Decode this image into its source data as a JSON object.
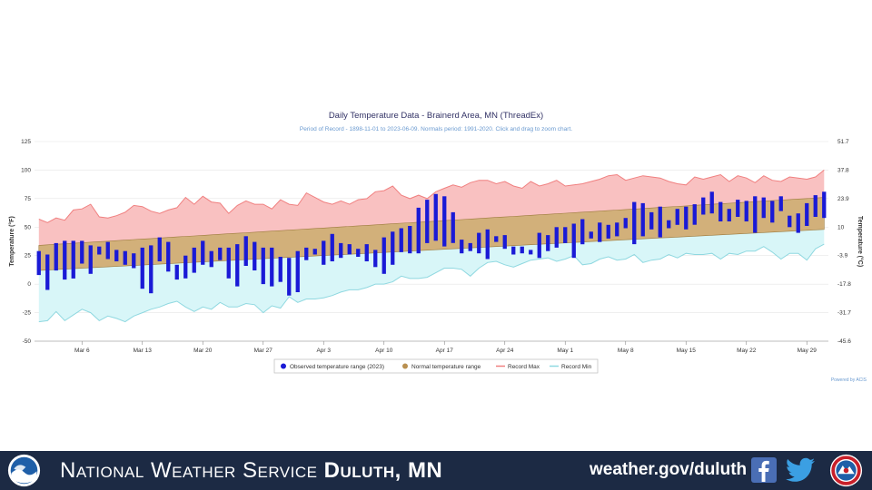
{
  "footer": {
    "title_prefix": "National Weather Service",
    "title_bold": "Duluth, MN",
    "url": "weather.gov/duluth",
    "icons": [
      "noaa-logo-icon",
      "facebook-icon",
      "twitter-icon",
      "nws-logo-icon"
    ]
  },
  "chart_data": {
    "type": "area",
    "title": "Daily Temperature Data - Brainerd Area, MN (ThreadEx)",
    "subtitle": "Period of Record - 1898-11-01 to 2023-06-09. Normals period: 1991-2020. Click and drag to zoom chart.",
    "ylabel": "Temperature (°F)",
    "ylabel_right": "Temperature (°C)",
    "ylim": [
      -50,
      125
    ],
    "yticks": [
      125,
      100,
      75,
      50,
      25,
      0,
      -25,
      -50
    ],
    "yticks_right": [
      "51.7",
      "37.8",
      "23.9",
      "10",
      "-3.9",
      "-17.8",
      "-31.7",
      "-45.6"
    ],
    "x_start": "Mar 1",
    "x_end": "Jun 1",
    "xtick_labels": [
      "Mar 6",
      "Mar 13",
      "Mar 20",
      "Mar 27",
      "Apr 3",
      "Apr 10",
      "Apr 17",
      "Apr 24",
      "May 1",
      "May 8",
      "May 15",
      "May 22",
      "May 29"
    ],
    "legend": [
      "Observed temperature range (2023)",
      "Normal temperature range",
      "Record Max",
      "Record Min"
    ],
    "legend_position": "bottom",
    "credit": "Powered by ACIS",
    "colors": {
      "observed": "#1a1ad6",
      "normal_fill": "#d2b07a",
      "normal_line": "#9c7a3c",
      "record_max_fill": "#f9c1c1",
      "record_max_line": "#f08080",
      "record_min_fill": "#d8f6f8",
      "record_min_line": "#8fd8e0"
    },
    "normal_start": [
      12,
      34
    ],
    "normal_end": [
      48,
      76
    ],
    "record_max": [
      57,
      54,
      58,
      56,
      65,
      66,
      70,
      59,
      58,
      60,
      63,
      69,
      68,
      64,
      62,
      65,
      67,
      76,
      70,
      77,
      72,
      71,
      62,
      69,
      73,
      70,
      70,
      66,
      74,
      70,
      69,
      80,
      76,
      72,
      70,
      73,
      70,
      74,
      75,
      81,
      82,
      86,
      78,
      75,
      78,
      75,
      81,
      84,
      87,
      85,
      89,
      91,
      91,
      88,
      90,
      86,
      84,
      90,
      86,
      88,
      91,
      86,
      87,
      88,
      90,
      92,
      95,
      96,
      91,
      93,
      95,
      94,
      93,
      90,
      88,
      87,
      94,
      92,
      94,
      96,
      90,
      95,
      93,
      89,
      95,
      91,
      90,
      94,
      93,
      92,
      94,
      100
    ],
    "record_min": [
      -33,
      -32,
      -24,
      -32,
      -27,
      -22,
      -25,
      -32,
      -28,
      -30,
      -33,
      -28,
      -25,
      -22,
      -20,
      -17,
      -15,
      -20,
      -24,
      -20,
      -22,
      -16,
      -20,
      -20,
      -17,
      -18,
      -25,
      -19,
      -21,
      -11,
      -16,
      -13,
      -13,
      -12,
      -10,
      -7,
      -5,
      -5,
      -3,
      0,
      0,
      2,
      7,
      5,
      5,
      6,
      10,
      14,
      14,
      13,
      7,
      14,
      19,
      20,
      17,
      15,
      18,
      21,
      22,
      23,
      20,
      22,
      25,
      17,
      18,
      22,
      24,
      21,
      22,
      26,
      19,
      21,
      22,
      26,
      23,
      27,
      26,
      26,
      27,
      22,
      27,
      26,
      29,
      29,
      33,
      28,
      22,
      27,
      27,
      21,
      31,
      35
    ],
    "observed": [
      [
        8,
        29
      ],
      [
        -5,
        26
      ],
      [
        12,
        36
      ],
      [
        4,
        38
      ],
      [
        5,
        38
      ],
      [
        18,
        38
      ],
      [
        9,
        34
      ],
      [
        26,
        33
      ],
      [
        22,
        37
      ],
      [
        20,
        30
      ],
      [
        17,
        29
      ],
      [
        14,
        27
      ],
      [
        -4,
        32
      ],
      [
        -8,
        34
      ],
      [
        20,
        41
      ],
      [
        11,
        37
      ],
      [
        4,
        17
      ],
      [
        5,
        25
      ],
      [
        10,
        32
      ],
      [
        17,
        38
      ],
      [
        15,
        29
      ],
      [
        21,
        32
      ],
      [
        5,
        32
      ],
      [
        -2,
        35
      ],
      [
        16,
        42
      ],
      [
        12,
        37
      ],
      [
        0,
        32
      ],
      [
        -2,
        32
      ],
      [
        2,
        24
      ],
      [
        -10,
        23
      ],
      [
        -7,
        29
      ],
      [
        21,
        32
      ],
      [
        26,
        31
      ],
      [
        17,
        38
      ],
      [
        20,
        44
      ],
      [
        23,
        36
      ],
      [
        26,
        35
      ],
      [
        24,
        31
      ],
      [
        20,
        35
      ],
      [
        15,
        30
      ],
      [
        9,
        41
      ],
      [
        17,
        46
      ],
      [
        28,
        49
      ],
      [
        27,
        51
      ],
      [
        27,
        67
      ],
      [
        36,
        74
      ],
      [
        38,
        79
      ],
      [
        33,
        77
      ],
      [
        36,
        63
      ],
      [
        27,
        39
      ],
      [
        29,
        36
      ],
      [
        27,
        45
      ],
      [
        22,
        48
      ],
      [
        37,
        42
      ],
      [
        31,
        43
      ],
      [
        26,
        33
      ],
      [
        27,
        33
      ],
      [
        26,
        30
      ],
      [
        23,
        45
      ],
      [
        29,
        43
      ],
      [
        32,
        50
      ],
      [
        36,
        50
      ],
      [
        23,
        53
      ],
      [
        35,
        57
      ],
      [
        40,
        46
      ],
      [
        37,
        54
      ],
      [
        40,
        52
      ],
      [
        42,
        54
      ],
      [
        49,
        58
      ],
      [
        35,
        72
      ],
      [
        42,
        71
      ],
      [
        48,
        63
      ],
      [
        41,
        68
      ],
      [
        49,
        56
      ],
      [
        52,
        66
      ],
      [
        48,
        68
      ],
      [
        52,
        70
      ],
      [
        61,
        76
      ],
      [
        62,
        81
      ],
      [
        55,
        72
      ],
      [
        55,
        66
      ],
      [
        59,
        74
      ],
      [
        55,
        73
      ],
      [
        45,
        77
      ],
      [
        58,
        76
      ],
      [
        54,
        73
      ],
      [
        64,
        77
      ],
      [
        50,
        60
      ],
      [
        45,
        62
      ],
      [
        51,
        71
      ],
      [
        59,
        78
      ],
      [
        58,
        81
      ]
    ]
  }
}
